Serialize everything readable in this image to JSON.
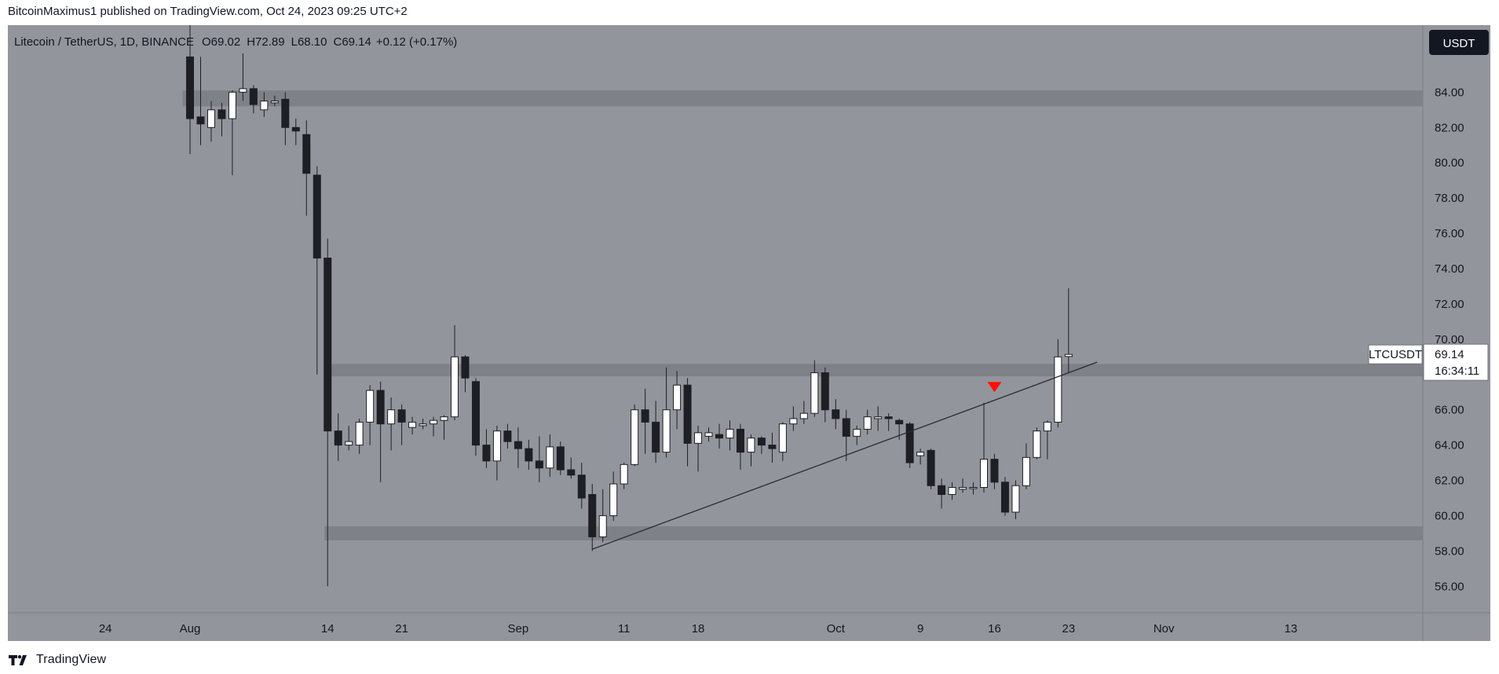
{
  "header": {
    "published": "BitcoinMaximus1 published on TradingView.com, Oct 24, 2023 09:25 UTC+2"
  },
  "footer": {
    "brand": "TradingView"
  },
  "chart_data": {
    "type": "candlestick",
    "symbol_line": "Litecoin / TetherUS, 1D, BINANCE",
    "ohlc_legend": {
      "o_label": "O",
      "o_value": "69.02",
      "h_label": "H",
      "h_value": "72.89",
      "l_label": "L",
      "l_value": "68.10",
      "c_label": "C",
      "c_value": "69.14",
      "change": "+0.12 (+0.17%)"
    },
    "currency": "USDT",
    "ylim": [
      54.5,
      87.8
    ],
    "y_ticks": [
      "84.00",
      "82.00",
      "80.00",
      "78.00",
      "76.00",
      "74.00",
      "72.00",
      "70.00",
      "68.00",
      "66.00",
      "64.00",
      "62.00",
      "60.00",
      "58.00",
      "56.00"
    ],
    "x_ticks": [
      {
        "label": "24",
        "day": -8
      },
      {
        "label": "Aug",
        "day": 0
      },
      {
        "label": "14",
        "day": 13
      },
      {
        "label": "21",
        "day": 20
      },
      {
        "label": "Sep",
        "day": 31
      },
      {
        "label": "11",
        "day": 41
      },
      {
        "label": "18",
        "day": 48
      },
      {
        "label": "Oct",
        "day": 61
      },
      {
        "label": "9",
        "day": 69
      },
      {
        "label": "16",
        "day": 76
      },
      {
        "label": "23",
        "day": 83
      },
      {
        "label": "Nov",
        "day": 92
      },
      {
        "label": "13",
        "day": 104
      }
    ],
    "first_candle_day": 0,
    "candles": [
      [
        86.0,
        88.5,
        80.5,
        82.5
      ],
      [
        82.6,
        86.0,
        81.0,
        82.2
      ],
      [
        82.0,
        83.5,
        81.2,
        83.0
      ],
      [
        83.0,
        83.4,
        81.5,
        82.5
      ],
      [
        82.5,
        84.1,
        79.3,
        84.0
      ],
      [
        84.0,
        86.2,
        83.5,
        84.2
      ],
      [
        84.2,
        84.4,
        82.8,
        83.3
      ],
      [
        83.0,
        84.0,
        82.6,
        83.5
      ],
      [
        83.4,
        83.8,
        83.2,
        83.5
      ],
      [
        83.6,
        84.0,
        81.0,
        82.0
      ],
      [
        82.0,
        82.5,
        81.0,
        81.8
      ],
      [
        81.6,
        82.4,
        77.0,
        79.4
      ],
      [
        79.3,
        79.8,
        68.0,
        74.6
      ],
      [
        74.6,
        75.7,
        56.0,
        64.8
      ],
      [
        64.8,
        65.8,
        63.1,
        64.0
      ],
      [
        64.0,
        65.1,
        63.7,
        64.2
      ],
      [
        64.0,
        65.5,
        63.5,
        65.3
      ],
      [
        65.3,
        67.4,
        64.0,
        67.1
      ],
      [
        67.1,
        67.6,
        61.9,
        65.2
      ],
      [
        65.2,
        66.7,
        63.7,
        66.0
      ],
      [
        66.0,
        66.3,
        64.0,
        65.3
      ],
      [
        65.0,
        65.6,
        64.6,
        65.3
      ],
      [
        65.1,
        65.5,
        64.9,
        65.2
      ],
      [
        65.2,
        65.6,
        64.5,
        65.4
      ],
      [
        65.4,
        65.7,
        64.3,
        65.6
      ],
      [
        65.6,
        70.8,
        65.4,
        69.0
      ],
      [
        69.0,
        69.1,
        67.0,
        67.8
      ],
      [
        67.6,
        67.8,
        63.4,
        64.0
      ],
      [
        64.0,
        64.9,
        62.7,
        63.1
      ],
      [
        63.1,
        65.1,
        62.0,
        64.8
      ],
      [
        64.8,
        65.2,
        63.8,
        64.2
      ],
      [
        64.2,
        65.0,
        62.7,
        63.8
      ],
      [
        63.8,
        64.3,
        62.6,
        63.1
      ],
      [
        63.1,
        64.5,
        61.9,
        62.7
      ],
      [
        62.7,
        64.6,
        62.2,
        63.9
      ],
      [
        63.9,
        64.2,
        62.3,
        62.6
      ],
      [
        62.6,
        63.3,
        62.1,
        62.3
      ],
      [
        62.3,
        63.0,
        60.4,
        61.0
      ],
      [
        61.2,
        61.8,
        58.0,
        58.8
      ],
      [
        58.8,
        61.5,
        58.5,
        60.0
      ],
      [
        60.0,
        62.5,
        59.7,
        61.8
      ],
      [
        61.8,
        63.0,
        61.5,
        62.9
      ],
      [
        62.9,
        66.3,
        62.8,
        66.0
      ],
      [
        66.0,
        67.2,
        63.5,
        65.3
      ],
      [
        65.3,
        66.5,
        63.0,
        63.6
      ],
      [
        63.6,
        68.4,
        63.3,
        66.0
      ],
      [
        66.0,
        68.2,
        64.9,
        67.4
      ],
      [
        67.4,
        67.8,
        62.8,
        64.1
      ],
      [
        64.1,
        65.1,
        62.5,
        64.7
      ],
      [
        64.5,
        65.0,
        64.2,
        64.7
      ],
      [
        64.6,
        65.2,
        63.8,
        64.4
      ],
      [
        64.4,
        65.4,
        63.7,
        64.9
      ],
      [
        64.9,
        65.2,
        62.6,
        63.6
      ],
      [
        63.6,
        64.6,
        62.8,
        64.4
      ],
      [
        64.4,
        64.5,
        63.5,
        64.0
      ],
      [
        64.0,
        64.7,
        63.0,
        63.8
      ],
      [
        63.6,
        65.3,
        63.1,
        65.2
      ],
      [
        65.2,
        66.2,
        64.8,
        65.5
      ],
      [
        65.5,
        66.5,
        65.2,
        65.8
      ],
      [
        65.8,
        68.8,
        65.6,
        68.1
      ],
      [
        68.1,
        68.4,
        65.3,
        66.0
      ],
      [
        66.0,
        66.6,
        64.9,
        65.5
      ],
      [
        65.5,
        66.0,
        63.1,
        64.5
      ],
      [
        64.5,
        65.1,
        64.0,
        64.9
      ],
      [
        64.9,
        66.0,
        64.6,
        65.6
      ],
      [
        65.5,
        66.2,
        64.8,
        65.6
      ],
      [
        65.6,
        65.8,
        64.8,
        65.5
      ],
      [
        65.4,
        65.5,
        64.3,
        65.2
      ],
      [
        65.2,
        65.3,
        62.7,
        63.0
      ],
      [
        63.4,
        63.8,
        62.9,
        63.6
      ],
      [
        63.7,
        63.8,
        61.5,
        61.7
      ],
      [
        61.7,
        62.1,
        60.4,
        61.2
      ],
      [
        61.2,
        61.9,
        60.9,
        61.6
      ],
      [
        61.5,
        62.1,
        61.3,
        61.6
      ],
      [
        61.6,
        61.9,
        61.2,
        61.6
      ],
      [
        61.6,
        66.4,
        61.3,
        63.2
      ],
      [
        63.2,
        63.5,
        61.5,
        61.9
      ],
      [
        61.9,
        62.2,
        60.0,
        60.2
      ],
      [
        60.2,
        62.0,
        59.8,
        61.7
      ],
      [
        61.7,
        64.1,
        61.5,
        63.3
      ],
      [
        63.3,
        65.0,
        63.2,
        64.8
      ],
      [
        64.8,
        65.4,
        63.2,
        65.3
      ],
      [
        65.3,
        70.0,
        65.0,
        69.0
      ],
      [
        69.02,
        72.89,
        68.1,
        69.14
      ]
    ],
    "zones": [
      {
        "low": 83.2,
        "high": 84.1,
        "from_day": -0.7
      },
      {
        "low": 67.9,
        "high": 68.6,
        "from_day": 13.0
      },
      {
        "low": 58.6,
        "high": 59.4,
        "from_day": 12.7
      }
    ],
    "trendline": {
      "from": [
        38.0,
        58.1
      ],
      "to": [
        85.7,
        68.7
      ]
    },
    "marker": {
      "type": "down-triangle",
      "day": 76,
      "value": 67.0,
      "color": "#ff1100"
    },
    "last_price": {
      "symbol": "LTCUSDT",
      "price": "69.14",
      "countdown": "16:34:11",
      "value": 69.14
    },
    "colors": {
      "plot_bg": "#93959d",
      "zone": "#7f8189",
      "bear": "#1e1f24",
      "bull": "#ffffff",
      "line": "#2a2b30",
      "text": "#131722"
    }
  }
}
